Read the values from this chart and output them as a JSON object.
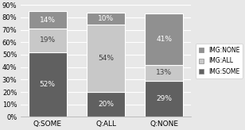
{
  "categories": [
    "Q:SOME",
    "Q:ALL",
    "Q:NONE"
  ],
  "series": {
    "IMG:SOME": [
      52,
      20,
      29
    ],
    "IMG:ALL": [
      19,
      54,
      13
    ],
    "IMG:NONE": [
      14,
      10,
      41
    ]
  },
  "colors": {
    "IMG:SOME": "#606060",
    "IMG:ALL": "#C8C8C8",
    "IMG:NONE": "#909090"
  },
  "ylim": [
    0,
    90
  ],
  "yticks": [
    0,
    10,
    20,
    30,
    40,
    50,
    60,
    70,
    80,
    90
  ],
  "ytick_labels": [
    "0%",
    "10%",
    "20%",
    "30%",
    "40%",
    "50%",
    "60%",
    "70%",
    "80%",
    "90%"
  ],
  "bar_width": 0.65,
  "legend_order": [
    "IMG:NONE",
    "IMG:ALL",
    "IMG:SOME"
  ],
  "label_colors": {
    "IMG:SOME": "#ffffff",
    "IMG:ALL": "#404040",
    "IMG:NONE": "#ffffff"
  },
  "background_color": "#e8e8e8",
  "plot_bg_color": "#e8e8e8",
  "grid_color": "#ffffff",
  "edge_color": "#ffffff"
}
